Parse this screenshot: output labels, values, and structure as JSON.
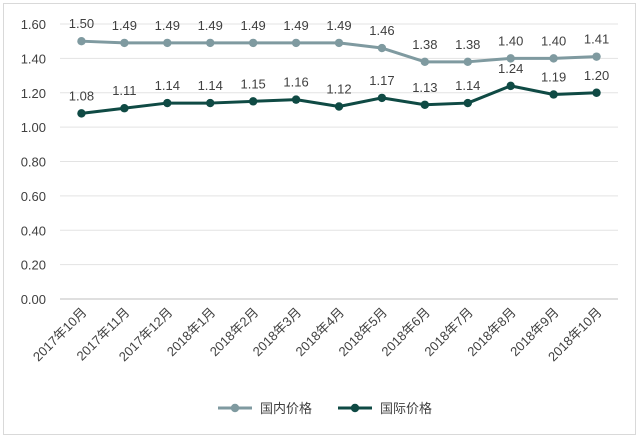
{
  "chart_data": {
    "type": "line",
    "categories": [
      "2017年10月",
      "2017年11月",
      "2017年12月",
      "2018年1月",
      "2018年2月",
      "2018年3月",
      "2018年4月",
      "2018年5月",
      "2018年6月",
      "2018年7月",
      "2018年8月",
      "2018年9月",
      "2018年10月"
    ],
    "series": [
      {
        "name": "国内价格",
        "color": "#7f9aa0",
        "values": [
          1.5,
          1.49,
          1.49,
          1.49,
          1.49,
          1.49,
          1.49,
          1.46,
          1.38,
          1.38,
          1.4,
          1.4,
          1.41
        ]
      },
      {
        "name": "国际价格",
        "color": "#0f4a44",
        "values": [
          1.08,
          1.11,
          1.14,
          1.14,
          1.15,
          1.16,
          1.12,
          1.17,
          1.13,
          1.14,
          1.24,
          1.19,
          1.2
        ]
      }
    ],
    "y_ticks": [
      "0.00",
      "0.20",
      "0.40",
      "0.60",
      "0.80",
      "1.00",
      "1.20",
      "1.40",
      "1.60"
    ],
    "ylim": [
      0,
      1.6
    ],
    "grid": true,
    "legend_position": "bottom",
    "title": "",
    "xlabel": "",
    "ylabel": ""
  }
}
